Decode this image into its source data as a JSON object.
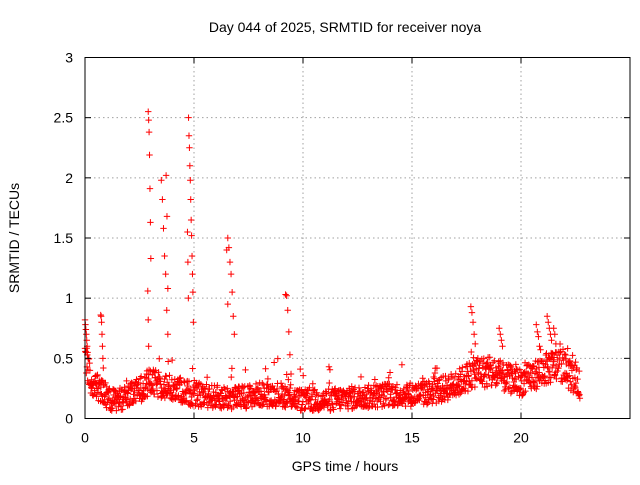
{
  "chart_data": {
    "type": "scatter",
    "title": "Day 044 of 2025, SRMTID for receiver noya",
    "xlabel": "GPS time / hours",
    "ylabel": "SRMTID / TECUs",
    "xlim": [
      0,
      25
    ],
    "ylim": [
      0,
      3
    ],
    "x_ticks": [
      0,
      5,
      10,
      15,
      20
    ],
    "x_tick_labels": [
      "0",
      "5",
      "10",
      "15",
      "20"
    ],
    "y_ticks": [
      0,
      0.5,
      1,
      1.5,
      2,
      2.5,
      3
    ],
    "y_tick_labels": [
      "0",
      "0.5",
      "1",
      "1.5",
      "2",
      "2.5",
      "3"
    ],
    "grid": true,
    "marker": "plus",
    "series_color": "#ff0000",
    "baseline_profile": {
      "x": [
        0,
        0.3,
        0.8,
        1.2,
        2.0,
        3.0,
        4.0,
        5.0,
        6.0,
        7.0,
        8.0,
        9.0,
        10.0,
        11.0,
        12.0,
        13.0,
        14.0,
        15.0,
        16.0,
        17.0,
        18.0,
        19.0,
        20.0,
        21.0,
        21.8,
        22.7
      ],
      "y": [
        0.55,
        0.3,
        0.22,
        0.15,
        0.18,
        0.3,
        0.25,
        0.2,
        0.18,
        0.17,
        0.2,
        0.2,
        0.15,
        0.15,
        0.17,
        0.18,
        0.2,
        0.2,
        0.22,
        0.28,
        0.4,
        0.35,
        0.3,
        0.4,
        0.45,
        0.28
      ]
    },
    "spikes": [
      {
        "x": [
          0.0,
          0.02,
          0.04,
          0.06,
          0.08,
          0.1,
          0.12,
          0.14
        ],
        "y": [
          0.82,
          0.78,
          0.74,
          0.7,
          0.65,
          0.6,
          0.55,
          0.5
        ]
      },
      {
        "x": [
          0.72,
          0.74,
          0.76,
          0.78,
          0.8,
          0.82,
          0.84
        ],
        "y": [
          0.86,
          0.85,
          0.8,
          0.7,
          0.6,
          0.5,
          0.42
        ]
      },
      {
        "x": [
          2.9,
          2.92,
          2.94,
          2.96,
          2.98,
          3.0,
          3.02
        ],
        "y": [
          2.55,
          2.48,
          2.38,
          2.19,
          1.91,
          1.63,
          1.33
        ]
      },
      {
        "x": [
          2.88,
          2.9,
          2.92
        ],
        "y": [
          1.06,
          0.82,
          0.6
        ]
      },
      {
        "x": [
          3.5,
          3.55,
          3.6,
          3.65,
          3.7,
          3.75,
          3.8
        ],
        "y": [
          1.98,
          1.82,
          1.58,
          1.35,
          1.2,
          0.9,
          0.7
        ]
      },
      {
        "x": [
          3.72,
          3.76,
          3.8
        ],
        "y": [
          2.02,
          1.68,
          1.08
        ]
      },
      {
        "x": [
          4.75,
          4.77,
          4.79,
          4.81,
          4.83,
          4.85,
          4.87,
          4.89,
          4.91,
          4.93,
          4.95,
          4.97
        ],
        "y": [
          2.5,
          2.35,
          2.25,
          2.1,
          1.98,
          1.82,
          1.65,
          1.52,
          1.35,
          1.2,
          1.05,
          0.8
        ]
      },
      {
        "x": [
          4.7,
          4.72,
          4.74
        ],
        "y": [
          1.55,
          1.3,
          1.0
        ]
      },
      {
        "x": [
          6.55,
          6.6,
          6.65,
          6.7,
          6.75,
          6.8,
          6.85
        ],
        "y": [
          1.5,
          1.42,
          1.3,
          1.2,
          1.05,
          0.85,
          0.7
        ]
      },
      {
        "x": [
          6.5,
          6.55
        ],
        "y": [
          1.4,
          0.95
        ]
      },
      {
        "x": [
          9.2,
          9.25,
          9.3,
          9.35,
          9.4,
          9.45
        ],
        "y": [
          1.03,
          1.02,
          0.9,
          0.72,
          0.53,
          0.37
        ]
      },
      {
        "x": [
          17.7,
          17.75,
          17.8,
          17.85,
          17.9
        ],
        "y": [
          0.93,
          0.88,
          0.8,
          0.7,
          0.62
        ]
      },
      {
        "x": [
          19.0,
          19.05,
          19.1,
          19.15
        ],
        "y": [
          0.75,
          0.7,
          0.65,
          0.6
        ]
      },
      {
        "x": [
          20.7,
          20.75,
          20.8,
          20.85
        ],
        "y": [
          0.78,
          0.72,
          0.68,
          0.6
        ]
      },
      {
        "x": [
          21.2,
          21.25,
          21.3,
          21.35,
          21.4
        ],
        "y": [
          0.85,
          0.8,
          0.75,
          0.7,
          0.65
        ]
      },
      {
        "x": [
          21.5,
          21.55,
          21.6
        ],
        "y": [
          0.75,
          0.7,
          0.62
        ]
      }
    ],
    "n_scatter_points": 1500
  }
}
